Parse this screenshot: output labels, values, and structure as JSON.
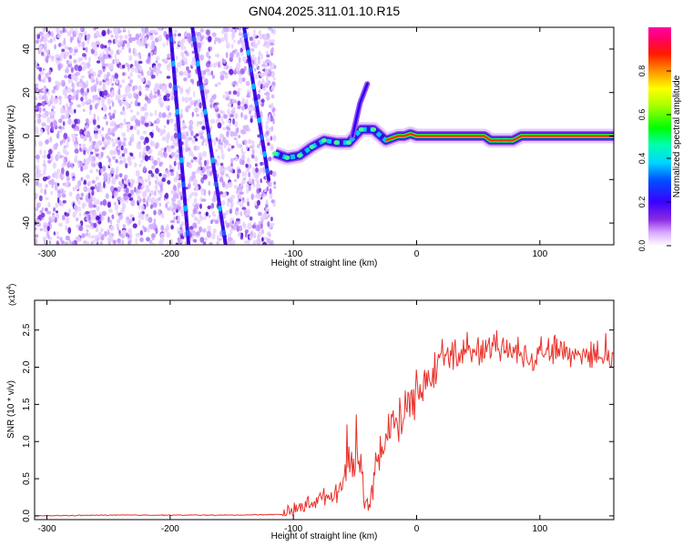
{
  "chart_data": [
    {
      "type": "heatmap",
      "title": "GN04.2025.311.01.10.R15",
      "xlabel": "Height of straight line (km)",
      "ylabel": "Frequency (Hz)",
      "xlim": [
        -310,
        160
      ],
      "ylim": [
        -50,
        50
      ],
      "xticks": [
        -300,
        -200,
        -100,
        0,
        100
      ],
      "yticks": [
        -40,
        -20,
        0,
        20,
        40
      ],
      "colorbar": {
        "label": "Normalized spectral amplitude",
        "range": [
          0,
          1
        ],
        "ticks": [
          "0.0",
          "0.2",
          "0.4",
          "0.6",
          "0.8"
        ]
      },
      "noise_region_x": [
        -310,
        -115
      ],
      "diagonal_streaks": [
        {
          "name": "streak-1",
          "x0": -200,
          "y0": 50,
          "x1": -185,
          "y1": -50
        },
        {
          "name": "streak-2",
          "x0": -182,
          "y0": 50,
          "x1": -155,
          "y1": -50
        },
        {
          "name": "streak-3",
          "x0": -140,
          "y0": 50,
          "x1": -120,
          "y1": -20
        }
      ],
      "ridge": {
        "x": [
          -115,
          -105,
          -95,
          -85,
          -75,
          -65,
          -55,
          -45,
          -35,
          -25,
          -20,
          -15,
          -10,
          -5,
          0,
          20,
          40,
          55,
          60,
          70,
          78,
          85,
          100,
          120,
          140,
          160
        ],
        "y": [
          -8,
          -10,
          -9,
          -5,
          -2,
          -3,
          -3,
          3,
          3,
          -2,
          -1,
          0,
          0,
          1,
          0,
          0,
          0,
          0,
          -2,
          -2,
          -2,
          0,
          0,
          0,
          0,
          0
        ]
      },
      "spur": {
        "x": [
          -52,
          -46,
          -40
        ],
        "y": [
          0,
          15,
          24
        ]
      }
    },
    {
      "type": "line",
      "xlabel": "Height of straight line (km)",
      "ylabel": "SNR (10 * v/v)",
      "y_multiplier": "(x10^4)",
      "y_multiplier_base": "(x10",
      "y_multiplier_exp": "4",
      "y_multiplier_close": ")",
      "xlim": [
        -310,
        160
      ],
      "ylim": [
        -0.05,
        2.9
      ],
      "xticks": [
        -300,
        -200,
        -100,
        0,
        100
      ],
      "yticks": [
        "0.0",
        "0.5",
        "1.0",
        "1.5",
        "2.0",
        "2.5"
      ],
      "color": "#e8322a",
      "series": [
        {
          "name": "SNR",
          "x": [
            -310,
            -250,
            -200,
            -150,
            -110,
            -100,
            -90,
            -80,
            -70,
            -65,
            -60,
            -55,
            -50,
            -45,
            -42,
            -38,
            -35,
            -32,
            -28,
            -25,
            -20,
            -15,
            -10,
            -5,
            0,
            10,
            20,
            30,
            40,
            50,
            60,
            70,
            80,
            90,
            100,
            110,
            120,
            130,
            140,
            150,
            160
          ],
          "y": [
            0.0,
            0.01,
            0.01,
            0.01,
            0.02,
            0.06,
            0.15,
            0.22,
            0.28,
            0.3,
            0.45,
            0.7,
            0.85,
            0.55,
            0.2,
            0.15,
            0.3,
            0.7,
            1.0,
            1.05,
            1.15,
            1.25,
            1.4,
            1.55,
            1.65,
            1.85,
            2.05,
            2.15,
            2.2,
            2.25,
            2.22,
            2.25,
            2.2,
            2.15,
            2.2,
            2.25,
            2.2,
            2.18,
            2.2,
            2.15,
            2.1
          ]
        }
      ]
    }
  ]
}
